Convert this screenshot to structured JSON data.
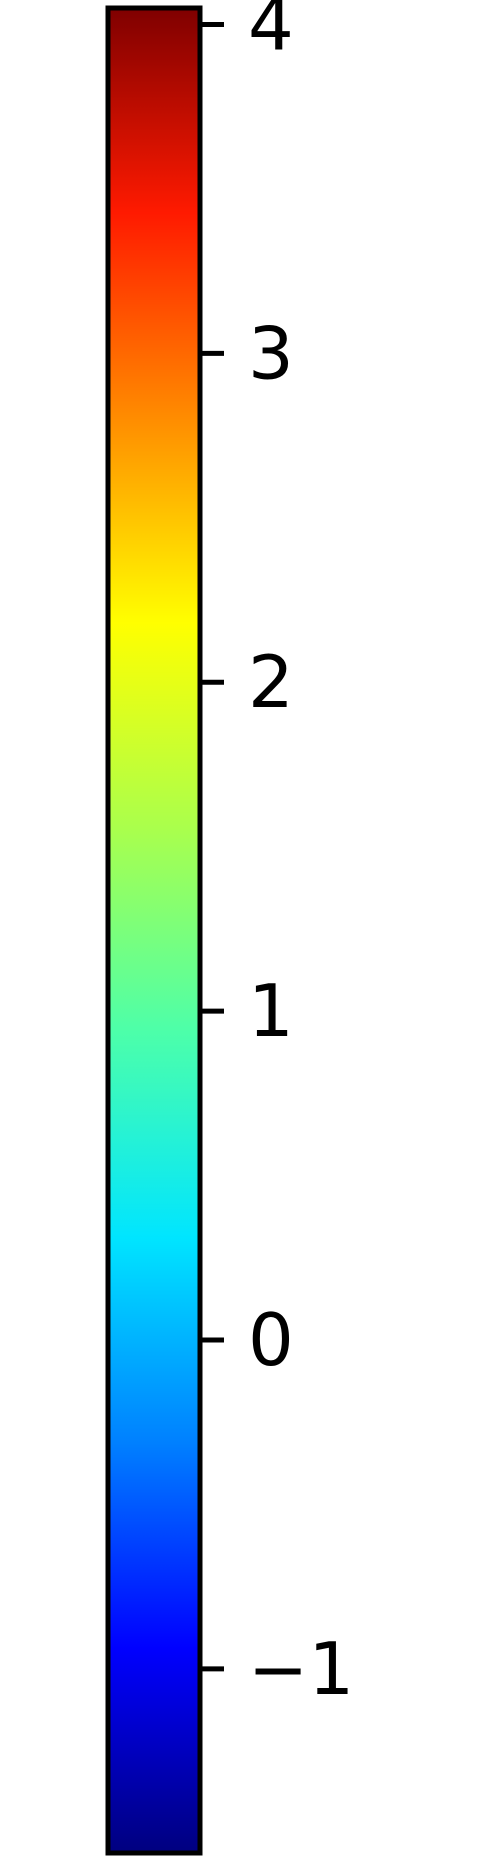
{
  "chart_data": {
    "type": "colorbar",
    "orientation": "vertical",
    "colormap": "jet",
    "range": [
      -1.56,
      4.05
    ],
    "ticks": [
      {
        "value": 4,
        "label": "4"
      },
      {
        "value": 3,
        "label": "3"
      },
      {
        "value": 2,
        "label": "2"
      },
      {
        "value": 1,
        "label": "1"
      },
      {
        "value": 0,
        "label": "0"
      },
      {
        "value": -1,
        "label": "−1"
      }
    ],
    "colors": {
      "stops": [
        "#00007f",
        "#0000ff",
        "#0080ff",
        "#00e5ff",
        "#4cffaa",
        "#aaff4c",
        "#ffff00",
        "#ff8c00",
        "#ff1a00",
        "#7f0000"
      ],
      "frame": "#000000",
      "background": "#ffffff"
    }
  }
}
